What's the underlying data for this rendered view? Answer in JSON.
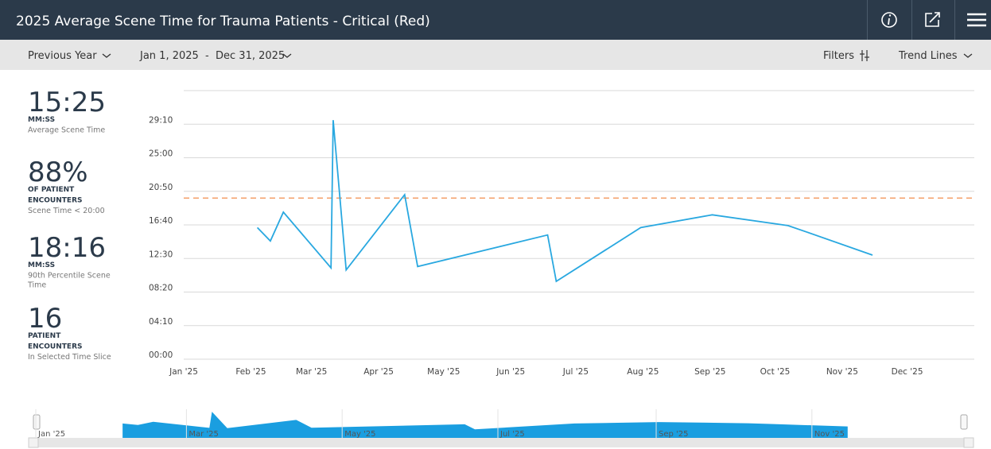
{
  "header": {
    "title": "2025 Average Scene Time for Trauma Patients - Critical (Red)"
  },
  "toolbar": {
    "period": "Previous Year",
    "range": "Jan 1, 2025  -  Dec 31, 2025",
    "filters": "Filters",
    "trend": "Trend Lines"
  },
  "kpis": [
    {
      "value": "15:25",
      "unit": [
        "MM:SS"
      ],
      "label": [
        "Average Scene Time"
      ]
    },
    {
      "value": "88%",
      "unit": [
        "OF PATIENT",
        "ENCOUNTERS"
      ],
      "label": [
        "Scene Time < 20:00"
      ]
    },
    {
      "value": "18:16",
      "unit": [
        "MM:SS"
      ],
      "label": [
        "90th Percentile Scene",
        "Time"
      ]
    },
    {
      "value": "16",
      "unit": [
        "PATIENT",
        "ENCOUNTERS"
      ],
      "label": [
        "In Selected Time Slice"
      ]
    }
  ],
  "chart_data": {
    "type": "line",
    "x": [
      34,
      40,
      46,
      68,
      69,
      75,
      102,
      108,
      168,
      172,
      211,
      244,
      279,
      288,
      318
    ],
    "series": [
      {
        "name": "Average Scene Time",
        "color": "#29a8e0",
        "values": [
          980,
          880,
          1095,
          680,
          1780,
          665,
          1225,
          690,
          925,
          580,
          980,
          1075,
          995,
          945,
          775
        ]
      }
    ],
    "xlim": [
      0,
      365
    ],
    "xticks": [
      {
        "value": 0,
        "label": "Jan '25"
      },
      {
        "value": 31,
        "label": "Feb '25"
      },
      {
        "value": 59,
        "label": "Mar '25"
      },
      {
        "value": 90,
        "label": "Apr '25"
      },
      {
        "value": 120,
        "label": "May '25"
      },
      {
        "value": 151,
        "label": "Jun '25"
      },
      {
        "value": 181,
        "label": "Jul '25"
      },
      {
        "value": 212,
        "label": "Aug '25"
      },
      {
        "value": 243,
        "label": "Sep '25"
      },
      {
        "value": 273,
        "label": "Oct '25"
      },
      {
        "value": 304,
        "label": "Nov '25"
      },
      {
        "value": 334,
        "label": "Dec '25"
      }
    ],
    "ylim": [
      0,
      2000
    ],
    "yticks": [
      {
        "value": 0,
        "label": "00:00"
      },
      {
        "value": 250,
        "label": "04:10"
      },
      {
        "value": 500,
        "label": "08:20"
      },
      {
        "value": 750,
        "label": "12:30"
      },
      {
        "value": 1000,
        "label": "16:40"
      },
      {
        "value": 1250,
        "label": "20:50"
      },
      {
        "value": 1500,
        "label": "25:00"
      },
      {
        "value": 1750,
        "label": "29:10"
      },
      {
        "value": 2000,
        "label": ""
      }
    ],
    "reference_line": {
      "value": 1200,
      "color": "#f4a06a"
    },
    "grid": true,
    "navigator": {
      "color": "#1a9ee0",
      "ticks": [
        {
          "value": 0,
          "label": "Jan '25"
        },
        {
          "value": 59,
          "label": "Mar '25"
        },
        {
          "value": 120,
          "label": "May '25"
        },
        {
          "value": 181,
          "label": "Jul '25"
        },
        {
          "value": 243,
          "label": "Sep '25"
        },
        {
          "value": 304,
          "label": "Nov '25"
        }
      ]
    }
  }
}
